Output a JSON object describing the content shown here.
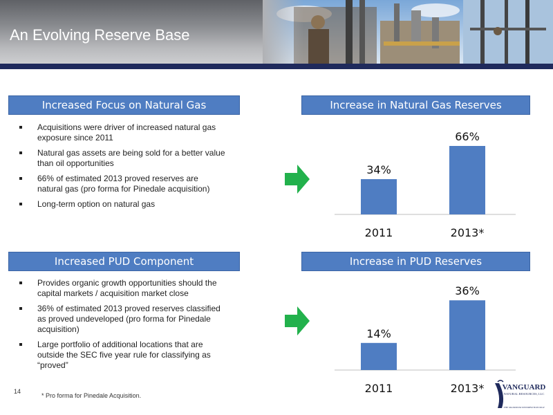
{
  "header": {
    "title": "An Evolving Reserve Base"
  },
  "sections": {
    "gas_focus": {
      "heading": "Increased Focus on Natural Gas",
      "bullets": [
        "Acquisitions were driver of increased natural gas exposure since 2011",
        "Natural gas assets are being sold for a better value than oil opportunities",
        "66% of estimated 2013 proved reserves are natural gas (pro forma for Pinedale acquisition)",
        "Long-term option on natural gas"
      ]
    },
    "pud": {
      "heading": "Increased PUD Component",
      "bullets": [
        "Provides organic growth opportunities should the capital markets / acquisition market close",
        "36% of estimated 2013 proved reserves classified as proved undeveloped (pro forma for Pinedale acquisition)",
        "Large portfolio of additional locations that are outside the SEC five year rule for classifying as “proved”"
      ]
    }
  },
  "chart_data": [
    {
      "type": "bar",
      "title": "Increase in Natural Gas Reserves",
      "categories": [
        "2011",
        "2013*"
      ],
      "values": [
        34,
        66
      ],
      "data_labels": [
        "34%",
        "66%"
      ],
      "ylim": [
        0,
        70
      ],
      "bar_color": "#4f7dc2",
      "grid": false,
      "legend": "none"
    },
    {
      "type": "bar",
      "title": "Increase in PUD Reserves",
      "categories": [
        "2011",
        "2013*"
      ],
      "values": [
        14,
        36
      ],
      "data_labels": [
        "14%",
        "36%"
      ],
      "ylim": [
        0,
        40
      ],
      "bar_color": "#4f7dc2",
      "grid": false,
      "legend": "none"
    }
  ],
  "footer": {
    "page_number": "14",
    "footnote": "* Pro forma for Pinedale Acquisition.",
    "logo_text": "VANGUARD",
    "logo_subtext": "NATURAL RESOURCES, LLC",
    "logo_tagline": "THE MAXIMUM DISTRIBUTION MLP"
  },
  "colors": {
    "accent": "#4f7dc2",
    "header_bar": "#1f2a5c",
    "arrow": "#22b14c"
  }
}
